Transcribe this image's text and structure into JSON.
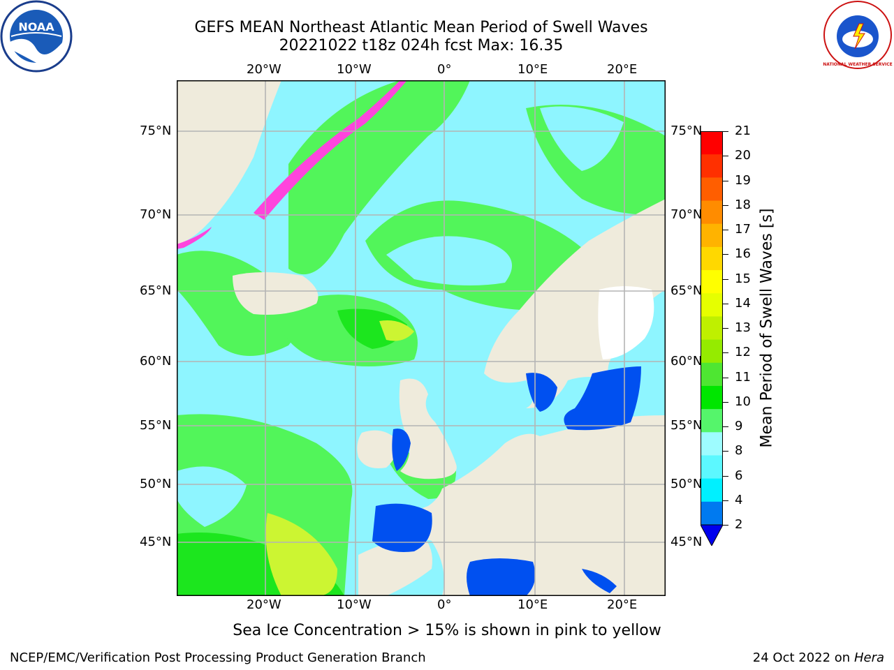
{
  "title_line1": "GEFS MEAN Northeast Atlantic Mean Period of Swell Waves",
  "title_line2": "20221022 t18z 024h fcst   Max: 16.35",
  "logos": {
    "left": {
      "name": "noaa-logo",
      "text": "NOAA"
    },
    "right": {
      "name": "nws-logo",
      "text": "NATIONAL WEATHER SERVICE"
    }
  },
  "map": {
    "lon_labels": [
      "20°W",
      "10°W",
      "0°",
      "10°E",
      "20°E"
    ],
    "lat_labels": [
      "75°N",
      "70°N",
      "65°N",
      "60°N",
      "55°N",
      "50°N",
      "45°N"
    ],
    "colors": {
      "ocean_cyan": "#8ef5ff",
      "ocean_green": "#52f55a",
      "ocean_bright_green": "#1ce61e",
      "ocean_yellow": "#ccf532",
      "ocean_blue": "#0050f0",
      "land": "#efebdc",
      "ice": "#ff44dd",
      "grid": "#b4b4b4"
    }
  },
  "colorbar": {
    "title": "Mean Period of Swell Waves [s]",
    "ticks": [
      "21",
      "20",
      "19",
      "18",
      "17",
      "16",
      "15",
      "14",
      "13",
      "12",
      "11",
      "10",
      "9",
      "8",
      "6",
      "4",
      "2"
    ],
    "colors": [
      "#ff0000",
      "#ff3000",
      "#ff5e00",
      "#ff8c00",
      "#ffb300",
      "#ffd800",
      "#ffff00",
      "#e6ff00",
      "#bff000",
      "#95eb00",
      "#4ee632",
      "#00e600",
      "#55f56b",
      "#9efcff",
      "#5cf8ff",
      "#00f0ff",
      "#007af0",
      "#0000ee"
    ]
  },
  "note": "Sea Ice Concentration > 15% is shown in pink to yellow",
  "footer_left": "NCEP/EMC/Verification Post Processing Product Generation Branch",
  "footer_right_date": "24 Oct 2022 on",
  "footer_right_host": "Hera"
}
